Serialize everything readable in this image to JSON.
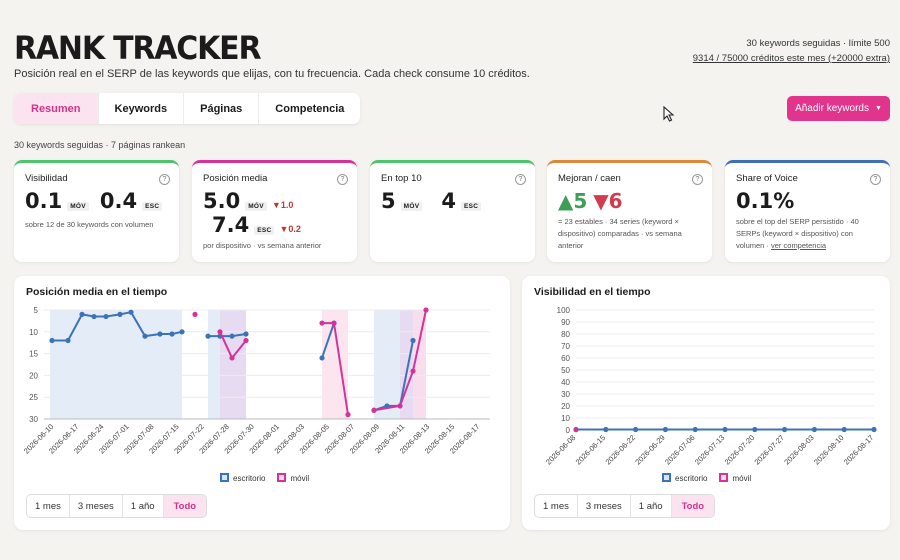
{
  "app": {
    "title": "RANK TRACKER",
    "subtitle": "Posición real en el SERP de las keywords que elijas, con tu frecuencia. Cada check consume 10 créditos.",
    "keywords_limit": "30 keywords seguidas · límite 500",
    "credits": "9314 / 75000 créditos este mes (+20000 extra)"
  },
  "tabs": [
    "Resumen",
    "Keywords",
    "Páginas",
    "Competencia"
  ],
  "add_button": "Añadir keywords",
  "summary": "30 keywords seguidas · 7 páginas rankean",
  "cards": {
    "visibility": {
      "title": "Visibilidad",
      "mov": "0.1",
      "esc": "0.4",
      "mov_tag": "MÓV",
      "esc_tag": "ESC",
      "note": "sobre 12 de 30 keywords con volumen"
    },
    "avg_position": {
      "title": "Posición media",
      "mov": "5.0",
      "mov_tag": "MÓV",
      "mov_delta": "▼1.0",
      "esc": "7.4",
      "esc_tag": "ESC",
      "esc_delta": "▼0.2",
      "note": "por dispositivo · vs semana anterior"
    },
    "top10": {
      "title": "En top 10",
      "mov": "5",
      "mov_tag": "MÓV",
      "esc": "4",
      "esc_tag": "ESC"
    },
    "movers": {
      "title": "Mejoran / caen",
      "up": "▲5",
      "down": "▼6",
      "note": "= 23 estables · 34 series (keyword × dispositivo) comparadas · vs semana anterior"
    },
    "sov": {
      "title": "Share of Voice",
      "value": "0.1%",
      "note": "sobre el top del SERP persistido · 40 SERPs (keyword × dispositivo) con volumen · ",
      "link": "ver competencia"
    }
  },
  "help_icon": "?",
  "panels": {
    "left_title": "Posición media en el tiempo",
    "right_title": "Visibilidad en el tiempo",
    "legend": {
      "desktop": "escritorio",
      "mobile": "móvil"
    },
    "ranges": [
      "1 mes",
      "3 meses",
      "1 año",
      "Todo"
    ]
  },
  "colors": {
    "accent": "#e0348d",
    "desktop": "#3b73b9",
    "mobile": "#d6339a",
    "green": "#4fc46c",
    "pink": "#d6339a",
    "orange": "#d9893a",
    "blue": "#3f6fb5"
  },
  "chart_data": [
    {
      "type": "line",
      "title": "Posición media en el tiempo",
      "x_labels": [
        "2026-06-10",
        "2026-06-17",
        "2026-06-24",
        "2026-07-01",
        "2026-07-08",
        "2026-07-15",
        "2026-07-22",
        "2026-07-28",
        "2026-07-30",
        "2026-08-01",
        "2026-08-03",
        "2026-08-05",
        "2026-08-07",
        "2026-08-09",
        "2026-08-11",
        "2026-08-13",
        "2026-08-15",
        "2026-08-17"
      ],
      "y_ticks": [
        5,
        10,
        15,
        20,
        25,
        30
      ],
      "ylim": [
        30,
        5
      ],
      "y_inverted": true,
      "series": [
        {
          "name": "escritorio",
          "values": [
            12,
            12,
            6,
            6.5,
            6.5,
            6,
            5.5,
            11,
            10.5,
            10.5,
            10,
            11,
            11,
            11,
            10.5,
            16,
            8,
            28,
            27,
            27,
            12
          ]
        },
        {
          "name": "móvil",
          "values": [
            6,
            10,
            16,
            12,
            8,
            8,
            29,
            28,
            27,
            19,
            5
          ]
        }
      ]
    },
    {
      "type": "line",
      "title": "Visibilidad en el tiempo",
      "x_labels": [
        "2026-06-08",
        "2026-06-15",
        "2026-06-22",
        "2026-06-29",
        "2026-07-06",
        "2026-07-13",
        "2026-07-20",
        "2026-07-27",
        "2026-08-03",
        "2026-08-10",
        "2026-08-17"
      ],
      "y_ticks": [
        0,
        10,
        20,
        30,
        40,
        50,
        60,
        70,
        80,
        90,
        100
      ],
      "ylim": [
        0,
        100
      ],
      "series": [
        {
          "name": "escritorio",
          "values": [
            0.4,
            0.4,
            0.4,
            0.4,
            0.4,
            0.4,
            0.4,
            0.4,
            0.4,
            0.4,
            0.4,
            0.4,
            0.4,
            0.4,
            0.4,
            0.4,
            0.4,
            0.4,
            0.4,
            0.4,
            0.4
          ]
        },
        {
          "name": "móvil",
          "values": [
            0.1
          ]
        }
      ]
    }
  ]
}
